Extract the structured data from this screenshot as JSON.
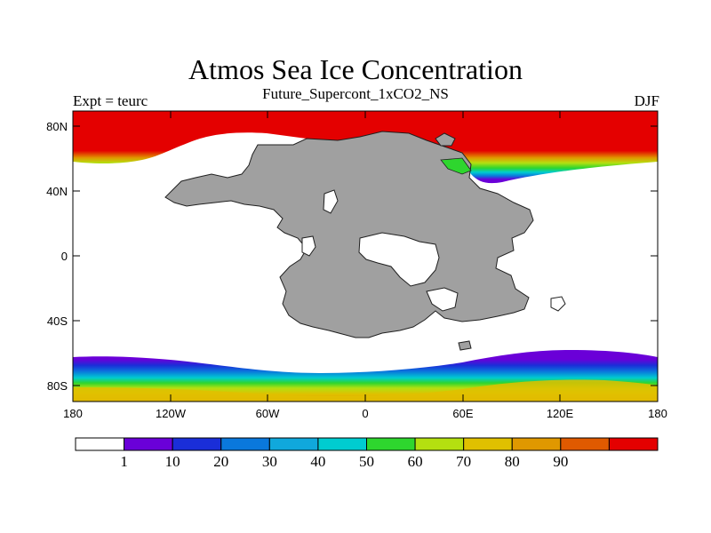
{
  "title": "Atmos Sea Ice Concentration",
  "subtitle": "Future_Supercont_1xCO2_NS",
  "left_string": "Expt = teurc",
  "right_string": "DJF",
  "map": {
    "projection": "cylindrical-equidistant",
    "lon_range": [
      -180,
      180
    ],
    "lat_range": [
      -90,
      90
    ],
    "land_fill": "#a0a0a0",
    "ocean_no_ice": "#ffffff"
  },
  "axes": {
    "x_ticks": [
      "180",
      "120W",
      "60W",
      "0",
      "60E",
      "120E",
      "180"
    ],
    "y_ticks": [
      "80N",
      "40N",
      "0",
      "40S",
      "80S"
    ]
  },
  "colorbar": {
    "colors": [
      "#ffffff",
      "#6a00d8",
      "#1a2ed8",
      "#0a78dc",
      "#10a8dc",
      "#00ccd0",
      "#2ed62e",
      "#b4e010",
      "#e0c000",
      "#e09800",
      "#e05a00",
      "#e40000"
    ],
    "labels": [
      "1",
      "10",
      "20",
      "30",
      "40",
      "50",
      "60",
      "70",
      "80",
      "90"
    ]
  }
}
